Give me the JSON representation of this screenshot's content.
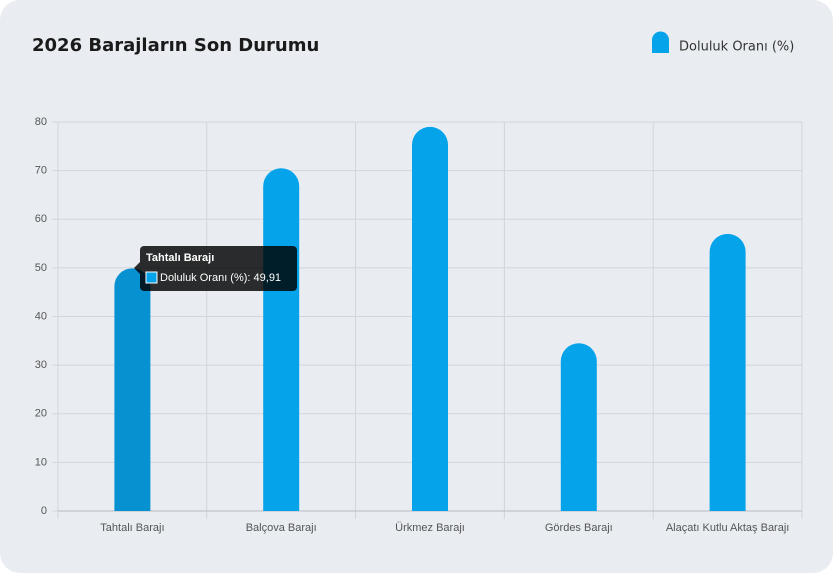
{
  "chart_data": {
    "type": "bar",
    "title": "2026 Barajların Son Durumu",
    "categories": [
      "Tahtalı Barajı",
      "Balçova Barajı",
      "Ürkmez Barajı",
      "Gördes Barajı",
      "Alaçatı Kutlu Aktaş Barajı"
    ],
    "series": [
      {
        "name": "Doluluk Oranı (%)",
        "color": "#05a3ea",
        "values": [
          49.91,
          70.5,
          79,
          34.5,
          57
        ]
      }
    ],
    "ylim": [
      0,
      80
    ],
    "yticks": [
      0,
      10,
      20,
      30,
      40,
      50,
      60,
      70,
      80
    ],
    "grid": true,
    "legend": "top-right",
    "tooltip": {
      "title": "Tahtalı Barajı",
      "label": "Doluluk Oranı (%): 49,91",
      "color": "#0891d1"
    }
  }
}
